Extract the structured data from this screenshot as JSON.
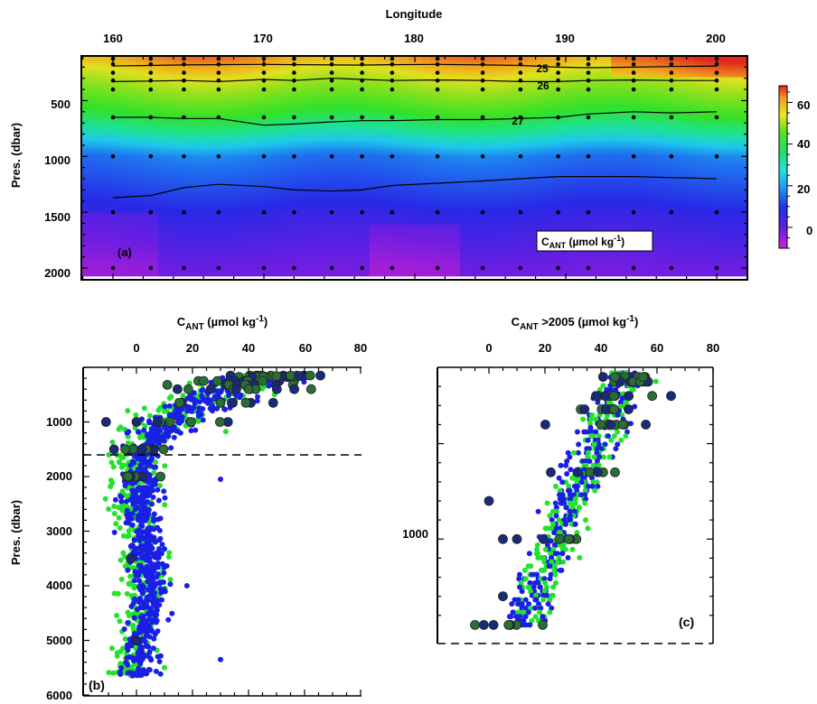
{
  "panel_a": {
    "x_title": "Longitude",
    "y_title": "Pres. (dbar)",
    "x_ticks": [
      "160",
      "170",
      "180",
      "190",
      "200"
    ],
    "y_ticks": [
      "500",
      "1000",
      "1500",
      "2000"
    ],
    "panel_label": "(a)",
    "box_label_main": "C",
    "box_label_sub": "ANT",
    "box_label_unit": " (µmol kg",
    "box_label_exp": "-1",
    "box_label_close": ")",
    "isopycnal_labels": [
      "25",
      "26",
      "27"
    ],
    "colorbar_ticks": [
      "60",
      "40",
      "20",
      "0"
    ]
  },
  "panel_b": {
    "x_title_main": "C",
    "x_title_sub": "ANT",
    "x_title_unit": " (µmol kg",
    "x_title_exp": "-1",
    "x_title_close": ")",
    "y_title": "Pres. (dbar)",
    "x_ticks": [
      "0",
      "20",
      "40",
      "60",
      "80"
    ],
    "y_ticks": [
      "1000",
      "2000",
      "3000",
      "4000",
      "5000",
      "6000"
    ],
    "panel_label": "(b)"
  },
  "panel_c": {
    "x_title_main": "C",
    "x_title_sub": "ANT",
    "x_title_unit": " >2005 (µmol kg",
    "x_title_exp": "-1",
    "x_title_close": ")",
    "x_ticks": [
      "0",
      "20",
      "40",
      "60",
      "80"
    ],
    "y_ticks": [
      "1000"
    ],
    "panel_label": "(c)"
  },
  "chart_data": [
    {
      "type": "heatmap",
      "panel": "(a)",
      "xlabel": "Longitude",
      "ylabel": "Pres. (dbar)",
      "xlim": [
        160,
        200
      ],
      "ylim": [
        2000,
        100
      ],
      "color_scale": {
        "min": -10,
        "max": 68,
        "ticks": [
          60,
          40,
          20,
          0
        ],
        "colormap": "rainbow (magenta-blue-cyan-green-yellow-red)"
      },
      "station_longitudes": [
        160,
        162.5,
        164.7,
        167,
        170,
        172,
        174.5,
        176.5,
        178.5,
        181.5,
        184.5,
        187,
        189.5,
        191.5,
        194.5,
        197,
        200
      ],
      "sample_pressures": [
        125,
        175,
        250,
        320,
        400,
        650,
        1000,
        1500,
        2000
      ],
      "isopycnals": [
        {
          "label": "25",
          "depths": [
            190,
            185,
            180,
            178,
            175,
            178,
            180,
            182,
            178,
            175,
            180,
            185,
            200,
            205,
            200,
            195,
            190
          ]
        },
        {
          "label": "26",
          "depths": [
            330,
            325,
            320,
            330,
            310,
            320,
            300,
            310,
            320,
            315,
            320,
            330,
            330,
            320,
            315,
            320,
            320
          ]
        },
        {
          "label": "27",
          "depths": [
            650,
            650,
            660,
            660,
            720,
            710,
            690,
            680,
            680,
            670,
            670,
            660,
            650,
            620,
            600,
            610,
            600
          ]
        },
        {
          "label": "",
          "depths": [
            1370,
            1350,
            1280,
            1250,
            1270,
            1300,
            1310,
            1300,
            1260,
            1240,
            1220,
            1200,
            1180,
            1180,
            1180,
            1190,
            1200
          ]
        }
      ],
      "c_ant_profile_mean": [
        {
          "pressure": 125,
          "value": 58
        },
        {
          "pressure": 250,
          "value": 50
        },
        {
          "pressure": 400,
          "value": 42
        },
        {
          "pressure": 650,
          "value": 30
        },
        {
          "pressure": 1000,
          "value": 12
        },
        {
          "pressure": 1500,
          "value": 2
        },
        {
          "pressure": 2000,
          "value": -5
        }
      ]
    },
    {
      "type": "scatter",
      "panel": "(b)",
      "xlabel": "CANT (µmol kg-1)",
      "ylabel": "Pres. (dbar)",
      "xlim": [
        -12,
        80
      ],
      "ylim": [
        6000,
        0
      ],
      "hline": 1600,
      "series": [
        {
          "color": "#22e22a"
        },
        {
          "color": "#1a1fe6"
        },
        {
          "color": "#2a6e35"
        },
        {
          "color": "#1a2a7a"
        }
      ],
      "points": [
        {
          "series": 2,
          "x": 55,
          "y": 150
        },
        {
          "series": 2,
          "x": 62,
          "y": 150
        },
        {
          "series": 2,
          "x": 50,
          "y": 160
        },
        {
          "series": 2,
          "x": 45,
          "y": 250
        },
        {
          "series": 2,
          "x": 40,
          "y": 400
        },
        {
          "series": 2,
          "x": 30,
          "y": 650
        },
        {
          "series": 2,
          "x": 12,
          "y": 1000
        },
        {
          "series": 2,
          "x": -4,
          "y": 1500
        },
        {
          "series": 2,
          "x": -3,
          "y": 2000
        },
        {
          "series": 3,
          "x": 58,
          "y": 160
        },
        {
          "series": 3,
          "x": 34,
          "y": 650
        },
        {
          "series": 3,
          "x": 0,
          "y": 1000
        },
        {
          "series": 3,
          "x": -8,
          "y": 1500
        },
        {
          "series": 3,
          "x": 2,
          "y": 1500
        },
        {
          "series": 3,
          "x": -2,
          "y": 3500
        },
        {
          "series": 3,
          "x": 0,
          "y": 5000
        },
        {
          "series": 1,
          "x": 30,
          "y": 5350
        },
        {
          "series": 1,
          "x": 30,
          "y": 2050
        },
        {
          "series": 1,
          "x": 18,
          "y": 4000
        },
        {
          "series": 0,
          "x": 10,
          "y": 5500
        }
      ]
    },
    {
      "type": "scatter",
      "panel": "(c)",
      "xlabel": "CANT >2005 (µmol kg-1)",
      "ylim": [
        1500,
        100
      ],
      "xlim": [
        -10,
        80
      ],
      "hline": 1500,
      "points": [
        {
          "series": 2,
          "x": 45,
          "y": 150
        },
        {
          "series": 2,
          "x": 55,
          "y": 150
        },
        {
          "series": 3,
          "x": 65,
          "y": 250
        },
        {
          "series": 2,
          "x": 40,
          "y": 400
        },
        {
          "series": 3,
          "x": 0,
          "y": 800
        },
        {
          "series": 3,
          "x": 5,
          "y": 1000
        },
        {
          "series": 2,
          "x": 45,
          "y": 650
        },
        {
          "series": 3,
          "x": 10,
          "y": 1000
        },
        {
          "series": 3,
          "x": 5,
          "y": 1300
        },
        {
          "series": 2,
          "x": -5,
          "y": 1450
        },
        {
          "series": 2,
          "x": 7,
          "y": 1450
        }
      ]
    }
  ]
}
